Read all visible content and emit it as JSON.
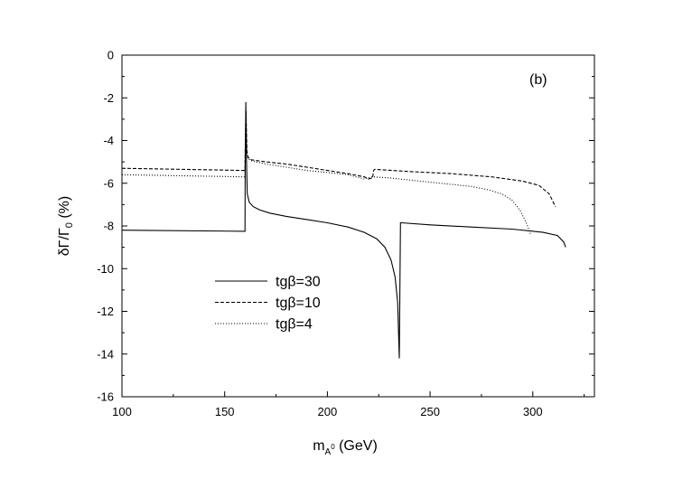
{
  "chart_data": {
    "type": "line",
    "panel_label": "(b)",
    "xlabel_main": "m",
    "xlabel_sub": "A",
    "xlabel_sup": "0",
    "xlabel_unit": " (GeV)",
    "ylabel": "δΓ/Γ",
    "ylabel_sub": "0",
    "ylabel_unit": " (%)",
    "xlim": [
      100,
      330
    ],
    "ylim": [
      -16,
      0
    ],
    "xticks": [
      100,
      150,
      200,
      250,
      300
    ],
    "yticks": [
      0,
      -2,
      -4,
      -6,
      -8,
      -10,
      -12,
      -14,
      -16
    ],
    "grid": false,
    "legend_position": "center-left",
    "series": [
      {
        "name": "tgβ=30",
        "style": "solid",
        "x": [
          100,
          159.9,
          160.0,
          160.3,
          160.6,
          161,
          162,
          164,
          167,
          172,
          180,
          190,
          200,
          210,
          218,
          224,
          228,
          231,
          233,
          234.2,
          235.0,
          235.6,
          236,
          250,
          270,
          290,
          305,
          312,
          315,
          316
        ],
        "y": [
          -8.2,
          -8.25,
          -5.5,
          -2.2,
          -4.8,
          -6.5,
          -6.9,
          -7.1,
          -7.25,
          -7.4,
          -7.55,
          -7.7,
          -7.85,
          -8.05,
          -8.3,
          -8.6,
          -9.0,
          -9.6,
          -10.4,
          -11.6,
          -14.2,
          -7.85,
          -7.85,
          -7.95,
          -8.05,
          -8.15,
          -8.3,
          -8.45,
          -8.75,
          -9.0
        ]
      },
      {
        "name": "tgβ=10",
        "style": "dashed",
        "x": [
          100,
          159.9,
          160.0,
          160.4,
          160.8,
          161.5,
          163,
          170,
          180,
          190,
          200,
          210,
          218,
          220,
          222,
          222.5,
          223,
          240,
          260,
          280,
          295,
          303,
          308,
          311
        ],
        "y": [
          -5.3,
          -5.4,
          -4.5,
          -2.6,
          -4.5,
          -4.8,
          -4.9,
          -5.0,
          -5.1,
          -5.25,
          -5.4,
          -5.55,
          -5.7,
          -5.8,
          -5.75,
          -5.4,
          -5.35,
          -5.45,
          -5.55,
          -5.7,
          -5.9,
          -6.1,
          -6.5,
          -7.1
        ]
      },
      {
        "name": "tgβ=4",
        "style": "dotted",
        "x": [
          100,
          159.9,
          160.0,
          160.4,
          160.8,
          161.5,
          163,
          170,
          180,
          190,
          200,
          210,
          218,
          222,
          230,
          240,
          250,
          260,
          270,
          278,
          285,
          290,
          294,
          297,
          299
        ],
        "y": [
          -5.6,
          -5.7,
          -4.6,
          -2.6,
          -4.7,
          -4.85,
          -4.95,
          -5.1,
          -5.25,
          -5.4,
          -5.5,
          -5.6,
          -5.8,
          -5.7,
          -5.75,
          -5.85,
          -5.95,
          -6.05,
          -6.15,
          -6.3,
          -6.5,
          -6.8,
          -7.3,
          -7.9,
          -8.4
        ]
      }
    ]
  }
}
